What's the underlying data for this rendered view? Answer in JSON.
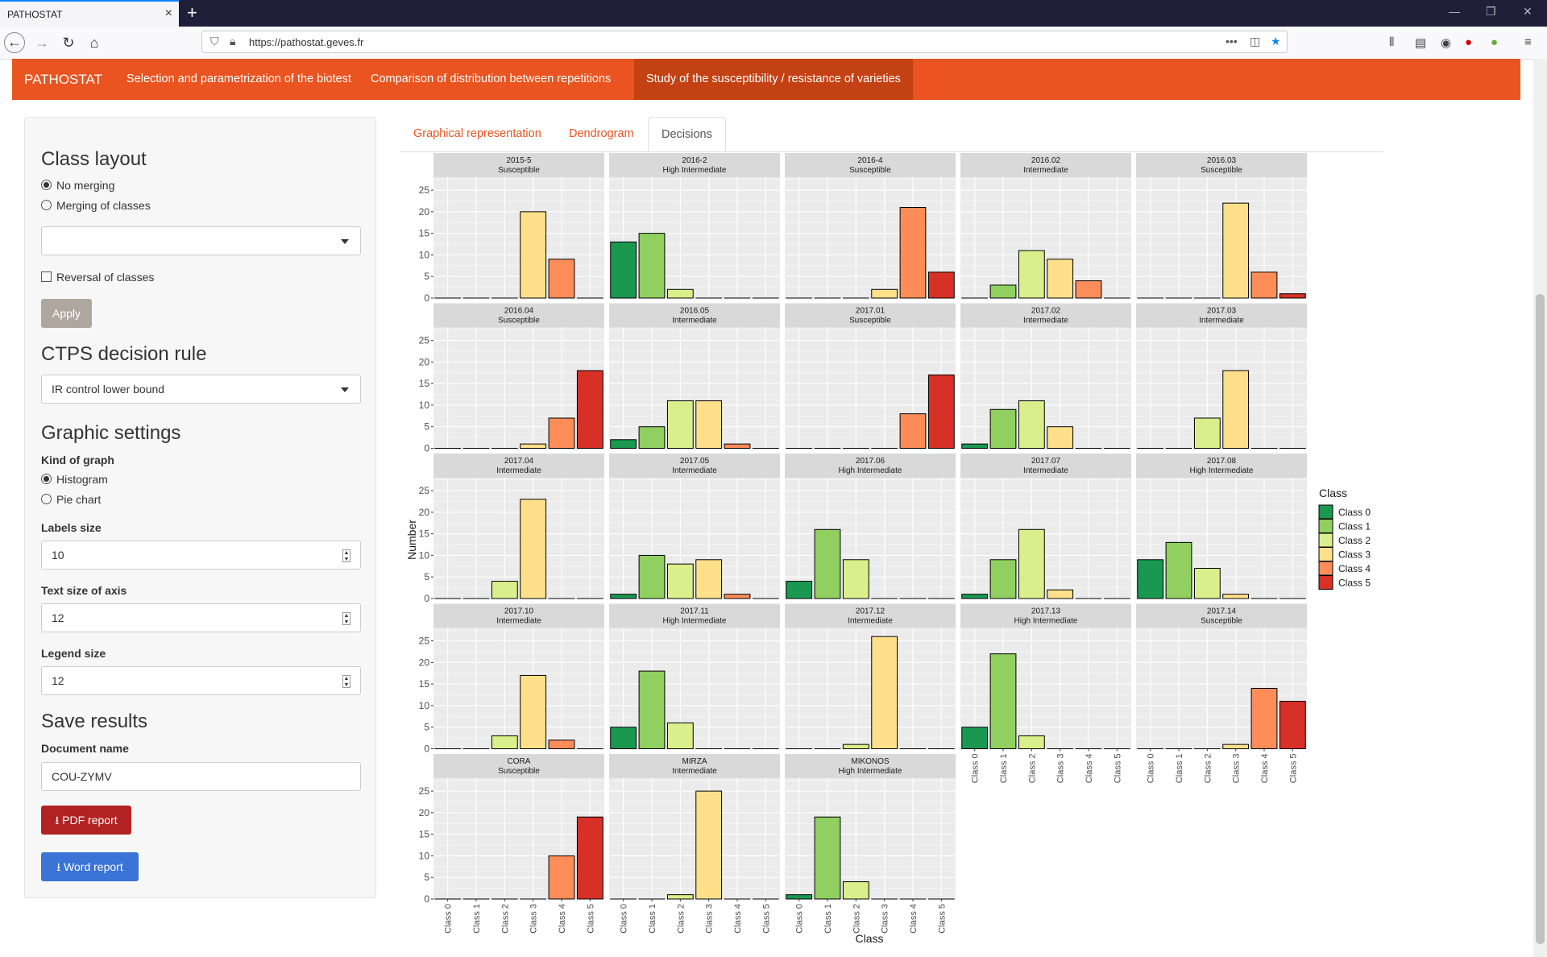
{
  "browser": {
    "tab_title": "PATHOSTAT",
    "url": "https://pathostat.geves.fr"
  },
  "app": {
    "brand": "PATHOSTAT",
    "nav": [
      "Selection and parametrization of the biotest",
      "Comparison of distribution between repetitions",
      "Study of the susceptibility / resistance of varieties"
    ],
    "active_nav": 2
  },
  "tabs": [
    "Graphical representation",
    "Dendrogram",
    "Decisions"
  ],
  "active_tab": 2,
  "sidebar": {
    "class_layout_title": "Class layout",
    "no_merging": "No merging",
    "merging": "Merging of classes",
    "merging_select": "",
    "reversal": "Reversal of classes",
    "apply": "Apply",
    "ctps_title": "CTPS decision rule",
    "ctps_value": "IR control lower bound",
    "graphic_title": "Graphic settings",
    "kind_label": "Kind of graph",
    "histogram": "Histogram",
    "pie": "Pie chart",
    "labels_size_label": "Labels size",
    "labels_size": "10",
    "axis_size_label": "Text size of axis",
    "axis_size": "12",
    "legend_size_label": "Legend size",
    "legend_size": "12",
    "save_title": "Save results",
    "docname_label": "Document name",
    "docname": "COU-ZYMV",
    "pdf_button": "PDF report",
    "word_button": "Word report"
  },
  "colors": {
    "accent": "#e95420",
    "pdf": "#b22222",
    "word": "#3b73d6",
    "classes": [
      "#1a9850",
      "#91cf60",
      "#d9ef8b",
      "#fee08b",
      "#fc8d59",
      "#d73027"
    ]
  },
  "chart_data": {
    "type": "bar",
    "xlabel": "Class",
    "ylabel": "Number",
    "ylim": [
      0,
      28
    ],
    "yticks": [
      0,
      5,
      10,
      15,
      20,
      25
    ],
    "categories": [
      "Class 0",
      "Class 1",
      "Class 2",
      "Class 3",
      "Class 4",
      "Class 5"
    ],
    "legend_title": "Class",
    "legend_position": "right",
    "grid": true,
    "panels": [
      {
        "name": "2015-5",
        "decision": "Susceptible",
        "values": [
          0,
          0,
          0,
          20,
          9,
          0
        ]
      },
      {
        "name": "2016-2",
        "decision": "High Intermediate",
        "values": [
          13,
          15,
          2,
          0,
          0,
          0
        ]
      },
      {
        "name": "2016-4",
        "decision": "Susceptible",
        "values": [
          0,
          0,
          0,
          2,
          21,
          6
        ]
      },
      {
        "name": "2016.02",
        "decision": "Intermediate",
        "values": [
          0,
          3,
          11,
          9,
          4,
          0
        ]
      },
      {
        "name": "2016.03",
        "decision": "Susceptible",
        "values": [
          0,
          0,
          0,
          22,
          6,
          1
        ]
      },
      {
        "name": "2016.04",
        "decision": "Susceptible",
        "values": [
          0,
          0,
          0,
          1,
          7,
          18
        ]
      },
      {
        "name": "2016.05",
        "decision": "Intermediate",
        "values": [
          2,
          5,
          11,
          11,
          1,
          0
        ]
      },
      {
        "name": "2017.01",
        "decision": "Susceptible",
        "values": [
          0,
          0,
          0,
          0,
          8,
          17
        ]
      },
      {
        "name": "2017.02",
        "decision": "Intermediate",
        "values": [
          1,
          9,
          11,
          5,
          0,
          0
        ]
      },
      {
        "name": "2017.03",
        "decision": "Intermediate",
        "values": [
          0,
          0,
          7,
          18,
          0,
          0
        ]
      },
      {
        "name": "2017.04",
        "decision": "Intermediate",
        "values": [
          0,
          0,
          4,
          23,
          0,
          0
        ]
      },
      {
        "name": "2017.05",
        "decision": "Intermediate",
        "values": [
          1,
          10,
          8,
          9,
          1,
          0
        ]
      },
      {
        "name": "2017.06",
        "decision": "High Intermediate",
        "values": [
          4,
          16,
          9,
          0,
          0,
          0
        ]
      },
      {
        "name": "2017.07",
        "decision": "Intermediate",
        "values": [
          1,
          9,
          16,
          2,
          0,
          0
        ]
      },
      {
        "name": "2017.08",
        "decision": "High Intermediate",
        "values": [
          9,
          13,
          7,
          1,
          0,
          0
        ]
      },
      {
        "name": "2017.10",
        "decision": "Intermediate",
        "values": [
          0,
          0,
          3,
          17,
          2,
          0
        ]
      },
      {
        "name": "2017.11",
        "decision": "High Intermediate",
        "values": [
          5,
          18,
          6,
          0,
          0,
          0
        ]
      },
      {
        "name": "2017.12",
        "decision": "Intermediate",
        "values": [
          0,
          0,
          1,
          26,
          0,
          0
        ]
      },
      {
        "name": "2017.13",
        "decision": "High Intermediate",
        "values": [
          5,
          22,
          3,
          0,
          0,
          0
        ]
      },
      {
        "name": "2017.14",
        "decision": "Susceptible",
        "values": [
          0,
          0,
          0,
          1,
          14,
          11
        ]
      },
      {
        "name": "CORA",
        "decision": "Susceptible",
        "values": [
          0,
          0,
          0,
          0,
          10,
          19
        ]
      },
      {
        "name": "MIRZA",
        "decision": "Intermediate",
        "values": [
          0,
          0,
          1,
          25,
          0,
          0
        ]
      },
      {
        "name": "MIKONOS",
        "decision": "High Intermediate",
        "values": [
          1,
          19,
          4,
          0,
          0,
          0
        ]
      }
    ]
  }
}
